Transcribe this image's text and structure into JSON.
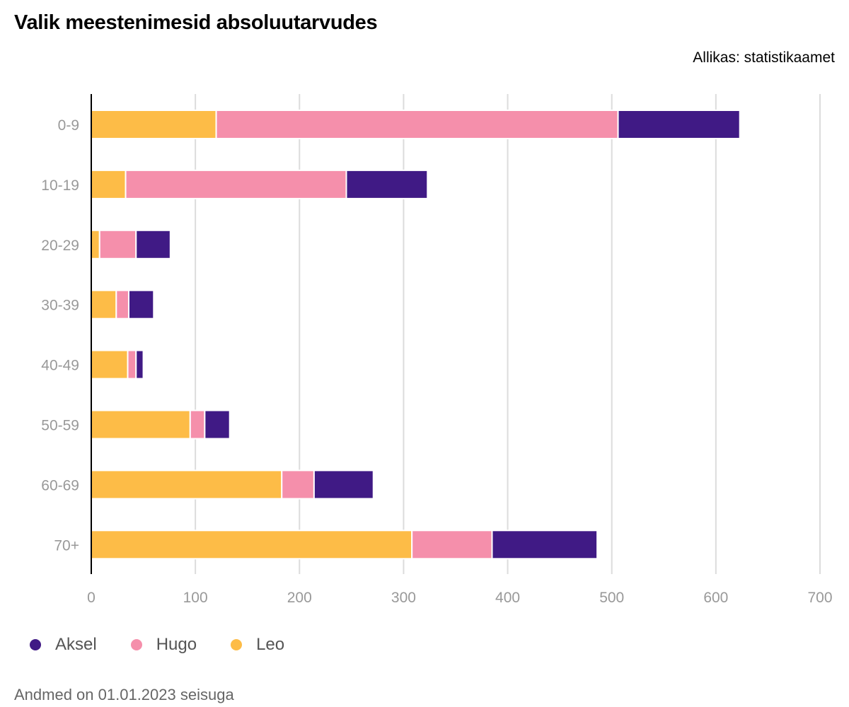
{
  "chart_data": {
    "type": "bar",
    "orientation": "horizontal",
    "stacked": true,
    "title": "Valik meestenimesid absoluutarvudes",
    "source": "Allikas: statistikaamet",
    "note": "Andmed on 01.01.2023 seisuga",
    "categories": [
      "0-9",
      "10-19",
      "20-29",
      "30-39",
      "40-49",
      "50-59",
      "60-69",
      "70+"
    ],
    "series": [
      {
        "name": "Leo",
        "color": "#fdbc47",
        "values": [
          120,
          33,
          8,
          24,
          35,
          95,
          183,
          308
        ]
      },
      {
        "name": "Hugo",
        "color": "#f58fab",
        "values": [
          386,
          212,
          35,
          12,
          8,
          14,
          31,
          77
        ]
      },
      {
        "name": "Aksel",
        "color": "#401a85",
        "values": [
          117,
          78,
          33,
          24,
          7,
          24,
          57,
          101
        ]
      }
    ],
    "legend_order": [
      "Aksel",
      "Hugo",
      "Leo"
    ],
    "xlim": [
      0,
      700
    ],
    "xticks": [
      "0",
      "100",
      "200",
      "300",
      "400",
      "500",
      "600",
      "700"
    ],
    "grid": true,
    "legend_position": "bottom-left"
  }
}
